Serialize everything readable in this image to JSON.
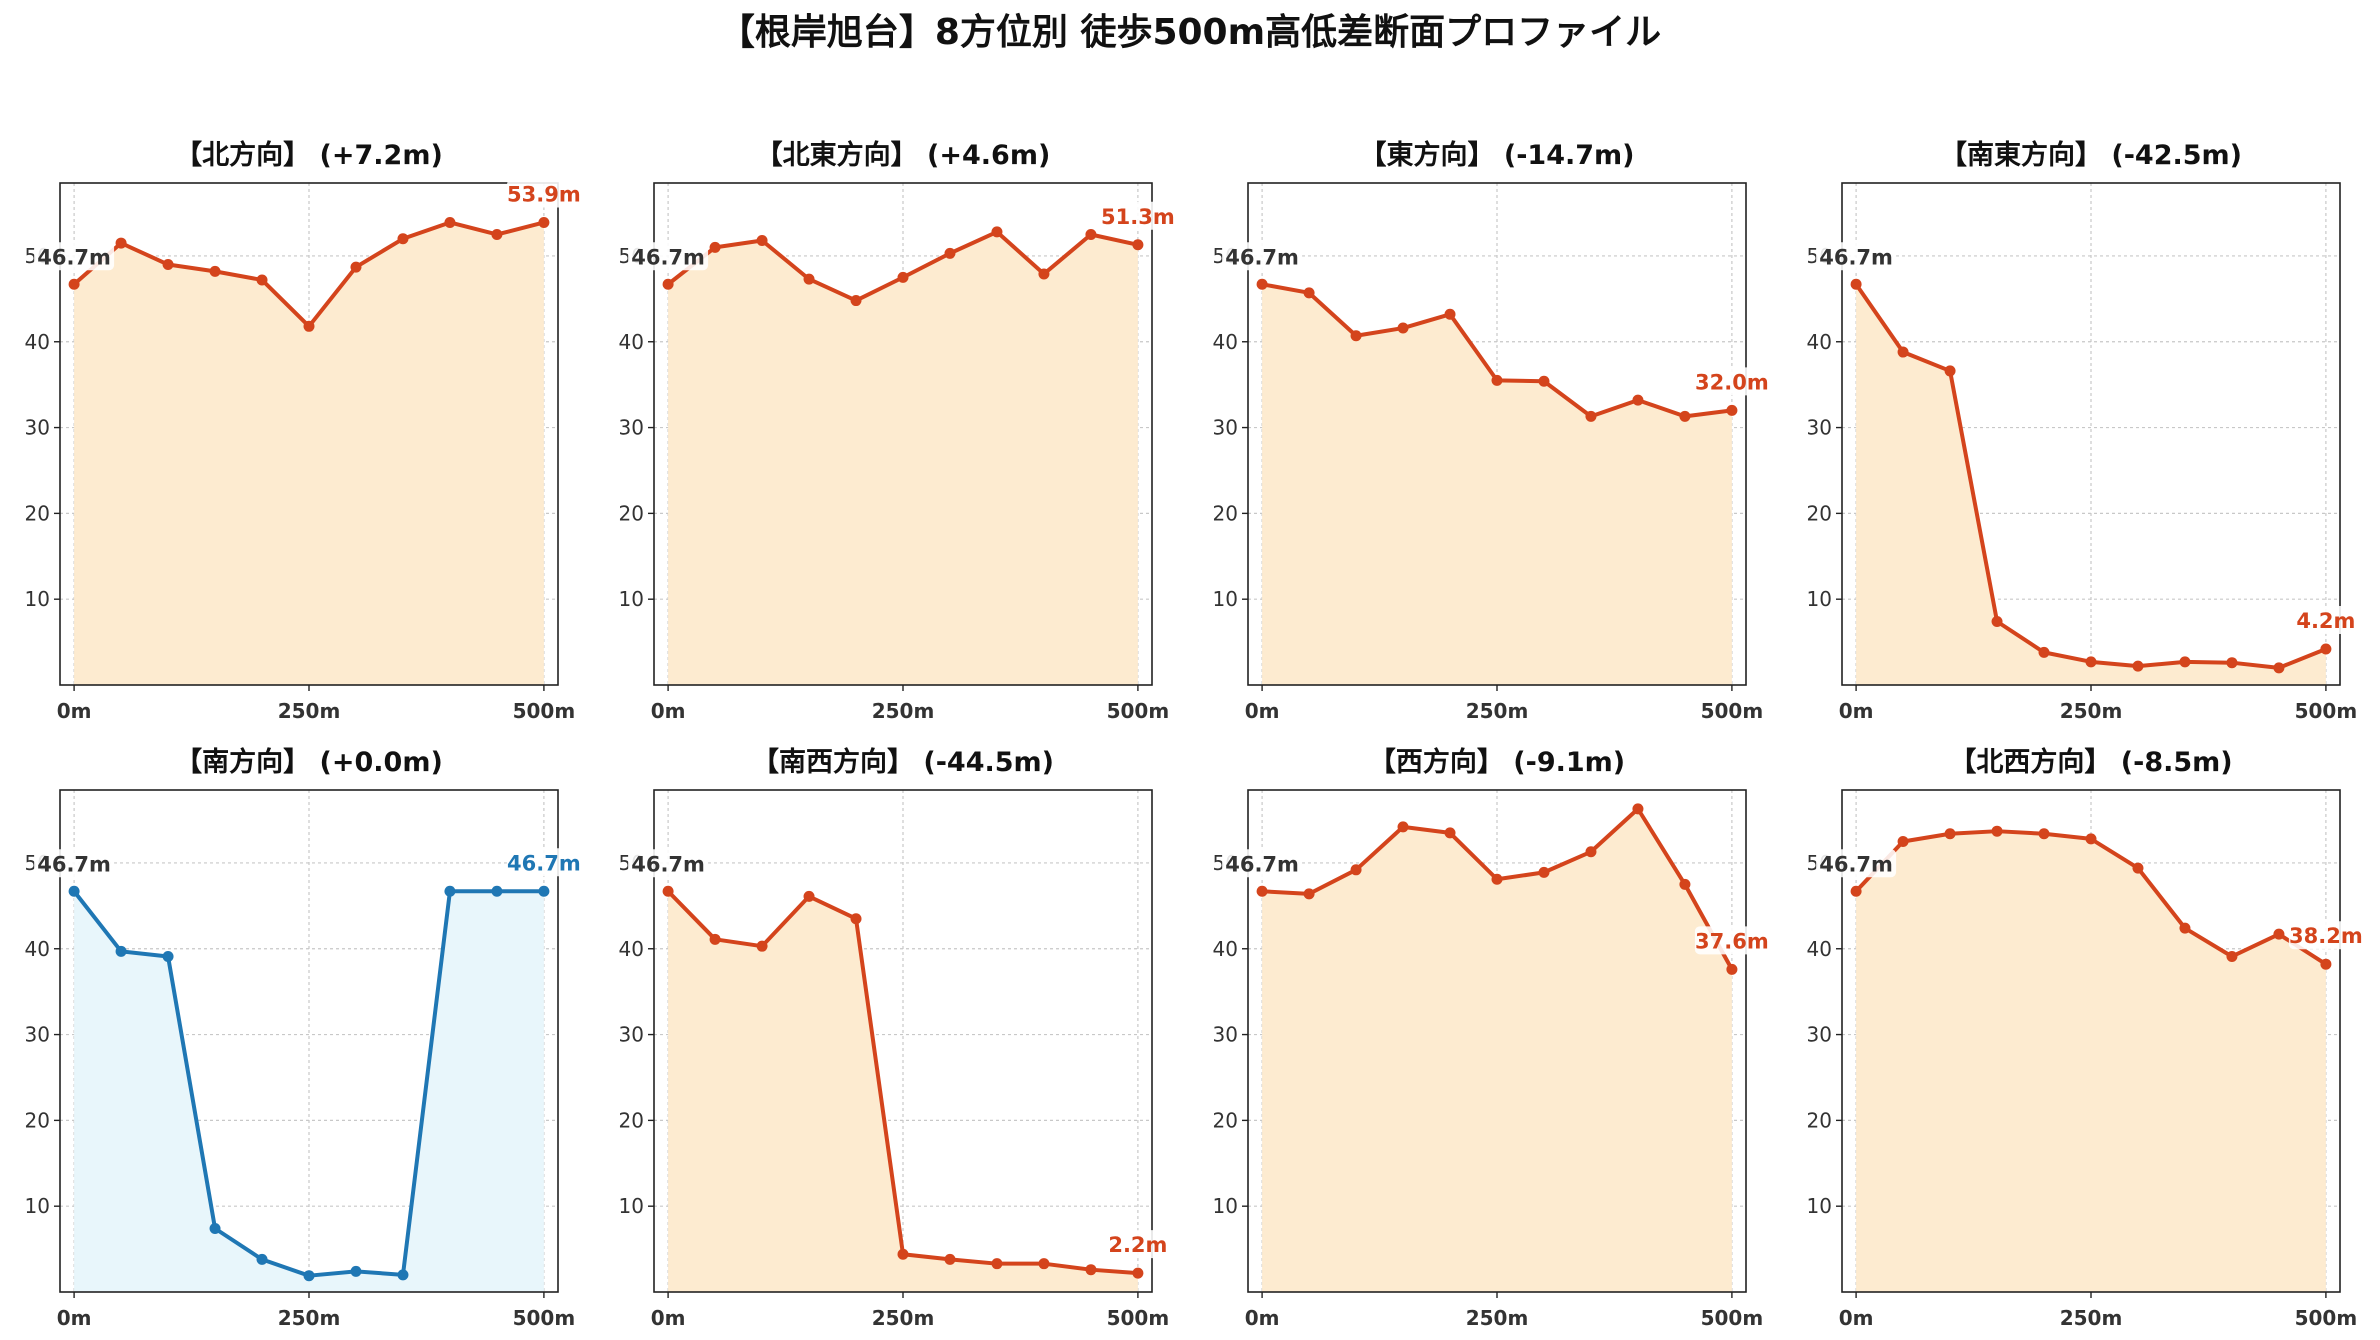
{
  "suptitle": "【根岸旭台】8方位別 徒歩500m高低差断面プロファイル",
  "colors": {
    "up_line": "#d4441c",
    "up_fill": "#fdebd0",
    "flat_line": "#1f77b4",
    "flat_fill": "#e8f6fb",
    "grid": "#c8c8c8",
    "axis": "#222222"
  },
  "chart_data": [
    {
      "type": "area",
      "title": "【北方向】 (+7.2m)",
      "x": [
        0,
        50,
        100,
        150,
        200,
        250,
        300,
        350,
        400,
        450,
        500
      ],
      "series": [
        {
          "values": [
            46.7,
            51.5,
            49.0,
            48.2,
            47.2,
            41.8,
            48.7,
            52.0,
            53.9,
            52.5,
            53.9
          ]
        }
      ],
      "start_label": "46.7m",
      "end_label": "53.9m",
      "xticks": [
        "0m",
        "250m",
        "500m"
      ],
      "yticks": [
        10,
        20,
        30,
        40,
        50
      ],
      "ylim": [
        0,
        58.5
      ],
      "xlim": [
        -15,
        515
      ],
      "grid": true,
      "style": "warm"
    },
    {
      "type": "area",
      "title": "【北東方向】 (+4.6m)",
      "x": [
        0,
        50,
        100,
        150,
        200,
        250,
        300,
        350,
        400,
        450,
        500
      ],
      "series": [
        {
          "values": [
            46.7,
            51.0,
            51.8,
            47.3,
            44.8,
            47.5,
            50.3,
            52.8,
            47.9,
            52.5,
            51.3
          ]
        }
      ],
      "start_label": "46.7m",
      "end_label": "51.3m",
      "xticks": [
        "0m",
        "250m",
        "500m"
      ],
      "yticks": [
        10,
        20,
        30,
        40,
        50
      ],
      "ylim": [
        0,
        58.5
      ],
      "xlim": [
        -15,
        515
      ],
      "grid": true,
      "style": "warm"
    },
    {
      "type": "area",
      "title": "【東方向】 (-14.7m)",
      "x": [
        0,
        50,
        100,
        150,
        200,
        250,
        300,
        350,
        400,
        450,
        500
      ],
      "series": [
        {
          "values": [
            46.7,
            45.7,
            40.7,
            41.6,
            43.2,
            35.5,
            35.4,
            31.3,
            33.2,
            31.3,
            32.0
          ]
        }
      ],
      "start_label": "46.7m",
      "end_label": "32.0m",
      "xticks": [
        "0m",
        "250m",
        "500m"
      ],
      "yticks": [
        10,
        20,
        30,
        40,
        50
      ],
      "ylim": [
        0,
        58.5
      ],
      "xlim": [
        -15,
        515
      ],
      "grid": true,
      "style": "warm"
    },
    {
      "type": "area",
      "title": "【南東方向】 (-42.5m)",
      "x": [
        0,
        50,
        100,
        150,
        200,
        250,
        300,
        350,
        400,
        450,
        500
      ],
      "series": [
        {
          "values": [
            46.7,
            38.8,
            36.6,
            7.4,
            3.8,
            2.7,
            2.2,
            2.7,
            2.6,
            2.0,
            4.2
          ]
        }
      ],
      "start_label": "46.7m",
      "end_label": "4.2m",
      "xticks": [
        "0m",
        "250m",
        "500m"
      ],
      "yticks": [
        10,
        20,
        30,
        40,
        50
      ],
      "ylim": [
        0,
        58.5
      ],
      "xlim": [
        -15,
        515
      ],
      "grid": true,
      "style": "warm"
    },
    {
      "type": "area",
      "title": "【南方向】 (+0.0m)",
      "x": [
        0,
        50,
        100,
        150,
        200,
        250,
        300,
        350,
        400,
        450,
        500
      ],
      "series": [
        {
          "values": [
            46.7,
            39.7,
            39.1,
            7.4,
            3.8,
            1.9,
            2.4,
            2.0,
            46.7,
            46.7,
            46.7
          ]
        }
      ],
      "start_label": "46.7m",
      "end_label": "46.7m",
      "xticks": [
        "0m",
        "250m",
        "500m"
      ],
      "yticks": [
        10,
        20,
        30,
        40,
        50
      ],
      "ylim": [
        0,
        58.5
      ],
      "xlim": [
        -15,
        515
      ],
      "grid": true,
      "style": "cool"
    },
    {
      "type": "area",
      "title": "【南西方向】 (-44.5m)",
      "x": [
        0,
        50,
        100,
        150,
        200,
        250,
        300,
        350,
        400,
        450,
        500
      ],
      "series": [
        {
          "values": [
            46.7,
            41.1,
            40.3,
            46.1,
            43.5,
            4.4,
            3.8,
            3.3,
            3.3,
            2.6,
            2.2
          ]
        }
      ],
      "start_label": "46.7m",
      "end_label": "2.2m",
      "xticks": [
        "0m",
        "250m",
        "500m"
      ],
      "yticks": [
        10,
        20,
        30,
        40,
        50
      ],
      "ylim": [
        0,
        58.5
      ],
      "xlim": [
        -15,
        515
      ],
      "grid": true,
      "style": "warm"
    },
    {
      "type": "area",
      "title": "【西方向】 (-9.1m)",
      "x": [
        0,
        50,
        100,
        150,
        200,
        250,
        300,
        350,
        400,
        450,
        500
      ],
      "series": [
        {
          "values": [
            46.7,
            46.4,
            49.2,
            54.2,
            53.5,
            48.1,
            48.9,
            51.3,
            56.3,
            47.5,
            37.6
          ]
        }
      ],
      "start_label": "46.7m",
      "end_label": "37.6m",
      "xticks": [
        "0m",
        "250m",
        "500m"
      ],
      "yticks": [
        10,
        20,
        30,
        40,
        50
      ],
      "ylim": [
        0,
        58.5
      ],
      "xlim": [
        -15,
        515
      ],
      "grid": true,
      "style": "warm"
    },
    {
      "type": "area",
      "title": "【北西方向】 (-8.5m)",
      "x": [
        0,
        50,
        100,
        150,
        200,
        250,
        300,
        350,
        400,
        450,
        500
      ],
      "series": [
        {
          "values": [
            46.7,
            52.5,
            53.4,
            53.7,
            53.4,
            52.8,
            49.4,
            42.4,
            39.1,
            41.7,
            38.2
          ]
        }
      ],
      "start_label": "46.7m",
      "end_label": "38.2m",
      "xticks": [
        "0m",
        "250m",
        "500m"
      ],
      "yticks": [
        10,
        20,
        30,
        40,
        50
      ],
      "ylim": [
        0,
        58.5
      ],
      "xlim": [
        -15,
        515
      ],
      "grid": true,
      "style": "warm"
    }
  ]
}
